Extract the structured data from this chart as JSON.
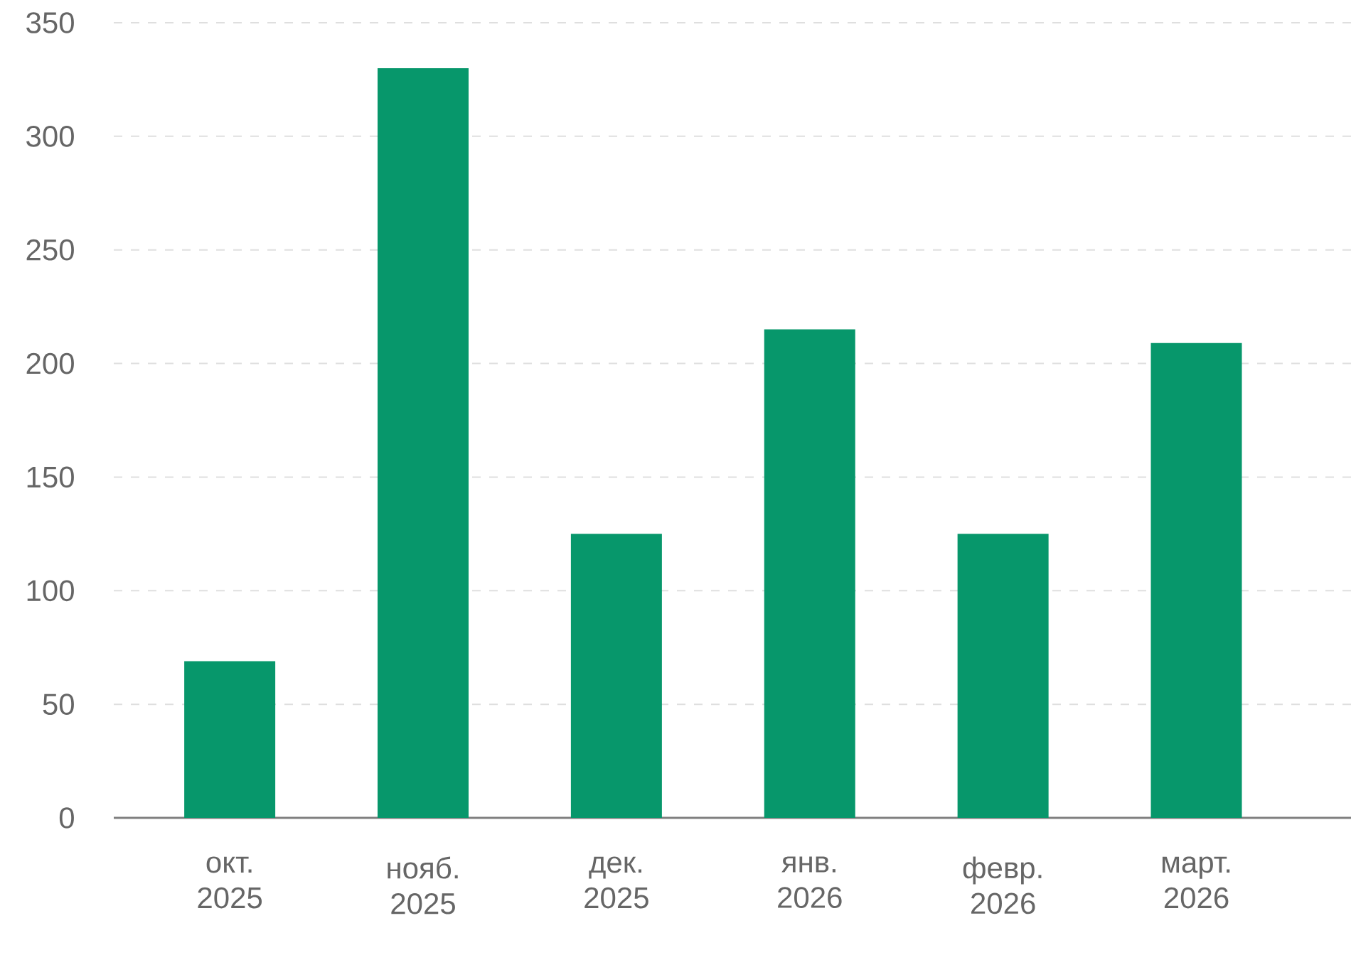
{
  "chart_data": {
    "type": "bar",
    "categories": [
      "окт. 2025",
      "нояб. 2025",
      "дек. 2025",
      "янв. 2026",
      "февр. 2026",
      "март. 2026"
    ],
    "values": [
      69,
      330,
      125,
      215,
      125,
      209
    ],
    "color": "#07976b",
    "ylim": [
      0,
      350
    ],
    "yticks": [
      0,
      50,
      100,
      150,
      200,
      250,
      300,
      350
    ],
    "grid": "y"
  }
}
